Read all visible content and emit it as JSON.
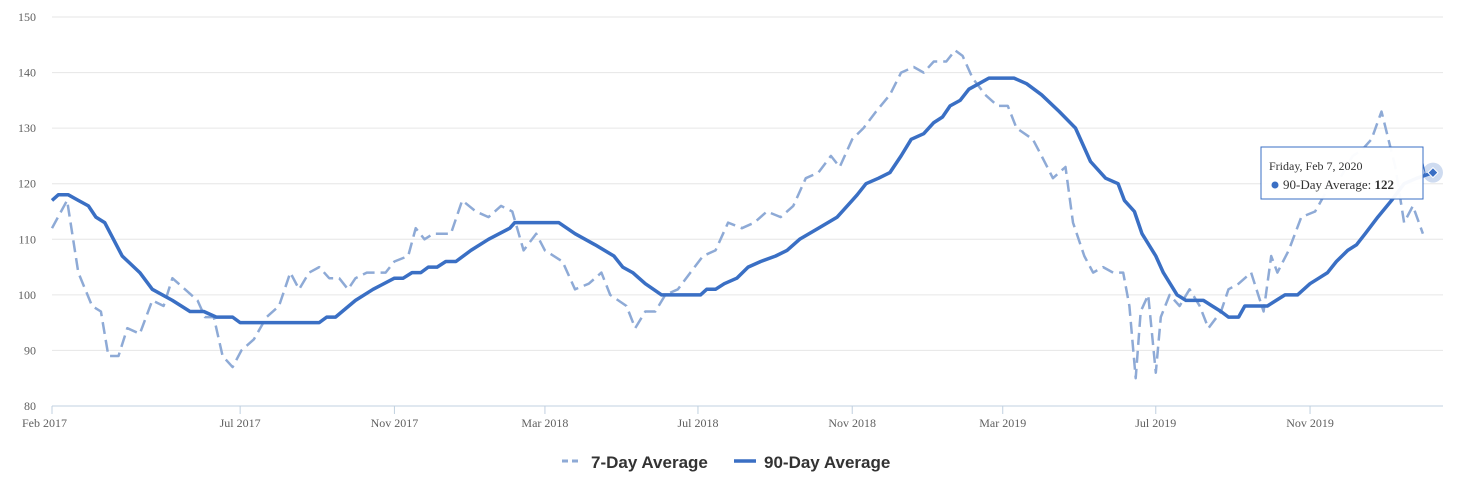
{
  "colors": {
    "seven_day": "#8eaad6",
    "ninety_day": "#3a6fc4",
    "grid": "#e6e6e6",
    "axis": "#c0d0e0",
    "tooltip_border": "#3a6fc4",
    "background": "#ffffff"
  },
  "legend": {
    "seven_day_label": "7-Day Average",
    "ninety_day_label": "90-Day Average"
  },
  "tooltip": {
    "date": "Friday, Feb 7, 2020",
    "series_label": "90-Day Average: ",
    "value": "122",
    "x": "2020-02-07",
    "y": 122
  },
  "chart_data": {
    "type": "line",
    "ylim": [
      80,
      150
    ],
    "xlim": [
      "2017-02-01",
      "2020-02-15"
    ],
    "y_ticks": [
      80,
      90,
      100,
      110,
      120,
      130,
      140,
      150
    ],
    "x_ticks": [
      {
        "date": "2017-02-01",
        "label": "Feb 2017"
      },
      {
        "date": "2017-07-01",
        "label": "Jul 2017"
      },
      {
        "date": "2017-11-01",
        "label": "Nov 2017"
      },
      {
        "date": "2018-03-01",
        "label": "Mar 2018"
      },
      {
        "date": "2018-07-01",
        "label": "Jul 2018"
      },
      {
        "date": "2018-11-01",
        "label": "Nov 2018"
      },
      {
        "date": "2019-03-01",
        "label": "Mar 2019"
      },
      {
        "date": "2019-07-01",
        "label": "Jul 2019"
      },
      {
        "date": "2019-11-01",
        "label": "Nov 2019"
      }
    ],
    "grid": true,
    "legend_position": "bottom-center",
    "series": [
      {
        "name": "7-Day Average",
        "style": "dashed",
        "points": [
          [
            "2017-02-01",
            112
          ],
          [
            "2017-02-13",
            117
          ],
          [
            "2017-02-22",
            104
          ],
          [
            "2017-03-05",
            98
          ],
          [
            "2017-03-12",
            97
          ],
          [
            "2017-03-18",
            89
          ],
          [
            "2017-03-26",
            89
          ],
          [
            "2017-04-02",
            94
          ],
          [
            "2017-04-12",
            93
          ],
          [
            "2017-04-22",
            99
          ],
          [
            "2017-05-01",
            98
          ],
          [
            "2017-05-08",
            103
          ],
          [
            "2017-05-18",
            101
          ],
          [
            "2017-05-28",
            99
          ],
          [
            "2017-06-03",
            96
          ],
          [
            "2017-06-10",
            96
          ],
          [
            "2017-06-17",
            89
          ],
          [
            "2017-06-25",
            87
          ],
          [
            "2017-07-02",
            90
          ],
          [
            "2017-07-12",
            92
          ],
          [
            "2017-07-22",
            96
          ],
          [
            "2017-08-01",
            98
          ],
          [
            "2017-08-10",
            104
          ],
          [
            "2017-08-17",
            101
          ],
          [
            "2017-08-25",
            104
          ],
          [
            "2017-09-02",
            105
          ],
          [
            "2017-09-10",
            103
          ],
          [
            "2017-09-18",
            103
          ],
          [
            "2017-09-25",
            101
          ],
          [
            "2017-10-01",
            103
          ],
          [
            "2017-10-10",
            104
          ],
          [
            "2017-10-25",
            104
          ],
          [
            "2017-11-01",
            106
          ],
          [
            "2017-11-12",
            107
          ],
          [
            "2017-11-18",
            112
          ],
          [
            "2017-11-25",
            110
          ],
          [
            "2017-12-02",
            111
          ],
          [
            "2017-12-16",
            111
          ],
          [
            "2017-12-25",
            117
          ],
          [
            "2018-01-05",
            115
          ],
          [
            "2018-01-15",
            114
          ],
          [
            "2018-01-25",
            116
          ],
          [
            "2018-02-03",
            115
          ],
          [
            "2018-02-12",
            108
          ],
          [
            "2018-02-22",
            111
          ],
          [
            "2018-03-01",
            108
          ],
          [
            "2018-03-15",
            106
          ],
          [
            "2018-03-25",
            101
          ],
          [
            "2018-04-05",
            102
          ],
          [
            "2018-04-15",
            104
          ],
          [
            "2018-04-22",
            100
          ],
          [
            "2018-05-05",
            98
          ],
          [
            "2018-05-12",
            94
          ],
          [
            "2018-05-20",
            97
          ],
          [
            "2018-05-28",
            97
          ],
          [
            "2018-06-05",
            100
          ],
          [
            "2018-06-15",
            101
          ],
          [
            "2018-06-25",
            104
          ],
          [
            "2018-07-05",
            107
          ],
          [
            "2018-07-15",
            108
          ],
          [
            "2018-07-25",
            113
          ],
          [
            "2018-08-05",
            112
          ],
          [
            "2018-08-15",
            113
          ],
          [
            "2018-08-25",
            115
          ],
          [
            "2018-09-05",
            114
          ],
          [
            "2018-09-15",
            116
          ],
          [
            "2018-09-25",
            121
          ],
          [
            "2018-10-05",
            122
          ],
          [
            "2018-10-15",
            125
          ],
          [
            "2018-10-22",
            123
          ],
          [
            "2018-11-01",
            128
          ],
          [
            "2018-11-10",
            130
          ],
          [
            "2018-11-20",
            133
          ],
          [
            "2018-12-01",
            136
          ],
          [
            "2018-12-10",
            140
          ],
          [
            "2018-12-20",
            141
          ],
          [
            "2018-12-28",
            140
          ],
          [
            "2019-01-05",
            142
          ],
          [
            "2019-01-15",
            142
          ],
          [
            "2019-01-22",
            144
          ],
          [
            "2019-01-28",
            143
          ],
          [
            "2019-02-05",
            139
          ],
          [
            "2019-02-15",
            136
          ],
          [
            "2019-02-25",
            134
          ],
          [
            "2019-03-05",
            134
          ],
          [
            "2019-03-12",
            130
          ],
          [
            "2019-03-25",
            128
          ],
          [
            "2019-04-01",
            125
          ],
          [
            "2019-04-10",
            121
          ],
          [
            "2019-04-20",
            123
          ],
          [
            "2019-04-26",
            113
          ],
          [
            "2019-05-05",
            107
          ],
          [
            "2019-05-12",
            104
          ],
          [
            "2019-05-20",
            105
          ],
          [
            "2019-05-28",
            104
          ],
          [
            "2019-06-05",
            104
          ],
          [
            "2019-06-10",
            98
          ],
          [
            "2019-06-15",
            85
          ],
          [
            "2019-06-19",
            97
          ],
          [
            "2019-06-25",
            100
          ],
          [
            "2019-07-01",
            86
          ],
          [
            "2019-07-05",
            96
          ],
          [
            "2019-07-12",
            100
          ],
          [
            "2019-07-20",
            98
          ],
          [
            "2019-07-28",
            101
          ],
          [
            "2019-08-05",
            98
          ],
          [
            "2019-08-12",
            94
          ],
          [
            "2019-08-22",
            97
          ],
          [
            "2019-08-28",
            101
          ],
          [
            "2019-09-05",
            102
          ],
          [
            "2019-09-15",
            104
          ],
          [
            "2019-09-25",
            97
          ],
          [
            "2019-10-01",
            107
          ],
          [
            "2019-10-06",
            104
          ],
          [
            "2019-10-15",
            108
          ],
          [
            "2019-10-25",
            114
          ],
          [
            "2019-11-05",
            115
          ],
          [
            "2019-11-15",
            119
          ],
          [
            "2019-11-25",
            121
          ],
          [
            "2019-12-05",
            125
          ],
          [
            "2019-12-12",
            126
          ],
          [
            "2019-12-20",
            128
          ],
          [
            "2019-12-28",
            133
          ],
          [
            "2020-01-08",
            123
          ],
          [
            "2020-01-15",
            113
          ],
          [
            "2020-01-22",
            116
          ],
          [
            "2020-01-30",
            111
          ]
        ]
      },
      {
        "name": "90-Day Average",
        "style": "solid",
        "points": [
          [
            "2017-02-01",
            117
          ],
          [
            "2017-02-06",
            118
          ],
          [
            "2017-02-14",
            118
          ],
          [
            "2017-02-22",
            117
          ],
          [
            "2017-03-02",
            116
          ],
          [
            "2017-03-08",
            114
          ],
          [
            "2017-03-15",
            113
          ],
          [
            "2017-03-29",
            107
          ],
          [
            "2017-04-12",
            104
          ],
          [
            "2017-04-22",
            101
          ],
          [
            "2017-05-08",
            99
          ],
          [
            "2017-05-22",
            97
          ],
          [
            "2017-06-02",
            97
          ],
          [
            "2017-06-12",
            96
          ],
          [
            "2017-06-25",
            96
          ],
          [
            "2017-07-01",
            95
          ],
          [
            "2017-07-15",
            95
          ],
          [
            "2017-08-01",
            95
          ],
          [
            "2017-08-15",
            95
          ],
          [
            "2017-09-02",
            95
          ],
          [
            "2017-09-08",
            96
          ],
          [
            "2017-09-15",
            96
          ],
          [
            "2017-10-01",
            99
          ],
          [
            "2017-10-15",
            101
          ],
          [
            "2017-11-01",
            103
          ],
          [
            "2017-11-08",
            103
          ],
          [
            "2017-11-15",
            104
          ],
          [
            "2017-11-22",
            104
          ],
          [
            "2017-11-28",
            105
          ],
          [
            "2017-12-05",
            105
          ],
          [
            "2017-12-12",
            106
          ],
          [
            "2017-12-20",
            106
          ],
          [
            "2018-01-01",
            108
          ],
          [
            "2018-01-15",
            110
          ],
          [
            "2018-02-01",
            112
          ],
          [
            "2018-02-05",
            113
          ],
          [
            "2018-02-15",
            113
          ],
          [
            "2018-03-01",
            113
          ],
          [
            "2018-03-12",
            113
          ],
          [
            "2018-03-25",
            111
          ],
          [
            "2018-04-10",
            109
          ],
          [
            "2018-04-25",
            107
          ],
          [
            "2018-05-02",
            105
          ],
          [
            "2018-05-10",
            104
          ],
          [
            "2018-05-20",
            102
          ],
          [
            "2018-06-02",
            100
          ],
          [
            "2018-06-15",
            100
          ],
          [
            "2018-06-28",
            100
          ],
          [
            "2018-07-03",
            100
          ],
          [
            "2018-07-08",
            101
          ],
          [
            "2018-07-15",
            101
          ],
          [
            "2018-07-22",
            102
          ],
          [
            "2018-08-01",
            103
          ],
          [
            "2018-08-10",
            105
          ],
          [
            "2018-08-20",
            106
          ],
          [
            "2018-09-01",
            107
          ],
          [
            "2018-09-10",
            108
          ],
          [
            "2018-09-20",
            110
          ],
          [
            "2018-10-05",
            112
          ],
          [
            "2018-10-20",
            114
          ],
          [
            "2018-11-01",
            117
          ],
          [
            "2018-11-05",
            118
          ],
          [
            "2018-11-12",
            120
          ],
          [
            "2018-11-22",
            121
          ],
          [
            "2018-12-01",
            122
          ],
          [
            "2018-12-10",
            125
          ],
          [
            "2018-12-18",
            128
          ],
          [
            "2018-12-28",
            129
          ],
          [
            "2019-01-05",
            131
          ],
          [
            "2019-01-12",
            132
          ],
          [
            "2019-01-18",
            134
          ],
          [
            "2019-01-26",
            135
          ],
          [
            "2019-02-02",
            137
          ],
          [
            "2019-02-10",
            138
          ],
          [
            "2019-02-18",
            139
          ],
          [
            "2019-02-28",
            139
          ],
          [
            "2019-03-10",
            139
          ],
          [
            "2019-03-20",
            138
          ],
          [
            "2019-04-01",
            136
          ],
          [
            "2019-04-15",
            133
          ],
          [
            "2019-04-28",
            130
          ],
          [
            "2019-05-10",
            124
          ],
          [
            "2019-05-22",
            121
          ],
          [
            "2019-06-01",
            120
          ],
          [
            "2019-06-06",
            117
          ],
          [
            "2019-06-14",
            115
          ],
          [
            "2019-06-20",
            111
          ],
          [
            "2019-07-01",
            107
          ],
          [
            "2019-07-07",
            104
          ],
          [
            "2019-07-18",
            100
          ],
          [
            "2019-07-25",
            99
          ],
          [
            "2019-08-01",
            99
          ],
          [
            "2019-08-08",
            99
          ],
          [
            "2019-08-15",
            98
          ],
          [
            "2019-08-22",
            97
          ],
          [
            "2019-08-28",
            96
          ],
          [
            "2019-09-05",
            96
          ],
          [
            "2019-09-10",
            98
          ],
          [
            "2019-09-20",
            98
          ],
          [
            "2019-09-28",
            98
          ],
          [
            "2019-10-05",
            99
          ],
          [
            "2019-10-12",
            100
          ],
          [
            "2019-10-22",
            100
          ],
          [
            "2019-11-01",
            102
          ],
          [
            "2019-11-08",
            103
          ],
          [
            "2019-11-15",
            104
          ],
          [
            "2019-11-22",
            106
          ],
          [
            "2019-12-01",
            108
          ],
          [
            "2019-12-08",
            109
          ],
          [
            "2019-12-15",
            111
          ],
          [
            "2019-12-25",
            114
          ],
          [
            "2020-01-05",
            117
          ],
          [
            "2020-01-15",
            120
          ],
          [
            "2020-01-25",
            121
          ],
          [
            "2020-02-07",
            122
          ]
        ]
      }
    ]
  }
}
